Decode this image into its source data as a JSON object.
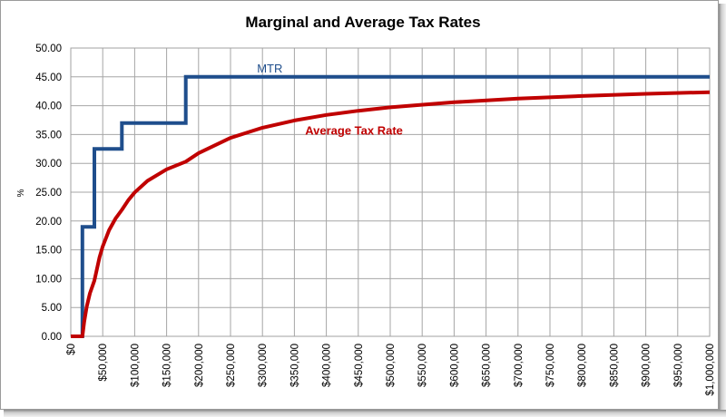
{
  "chart_data": {
    "type": "line",
    "title": "Marginal and Average Tax Rates",
    "xlabel": "",
    "ylabel": "%",
    "xlim": [
      0,
      1000000
    ],
    "ylim": [
      0,
      50
    ],
    "grid": true,
    "legend": "none (inline annotations)",
    "y_ticks": [
      "0.00",
      "5.00",
      "10.00",
      "15.00",
      "20.00",
      "25.00",
      "30.00",
      "35.00",
      "40.00",
      "45.00",
      "50.00"
    ],
    "y_tick_values": [
      0,
      5,
      10,
      15,
      20,
      25,
      30,
      35,
      40,
      45,
      50
    ],
    "x_ticks": [
      "$0",
      "$50,000",
      "$100,000",
      "$150,000",
      "$200,000",
      "$250,000",
      "$300,000",
      "$350,000",
      "$400,000",
      "$450,000",
      "$500,000",
      "$550,000",
      "$600,000",
      "$650,000",
      "$700,000",
      "$750,000",
      "$800,000",
      "$850,000",
      "$900,000",
      "$950,000",
      "$1,000,000"
    ],
    "x_tick_values": [
      0,
      50000,
      100000,
      150000,
      200000,
      250000,
      300000,
      350000,
      400000,
      450000,
      500000,
      550000,
      600000,
      650000,
      700000,
      750000,
      800000,
      850000,
      900000,
      950000,
      1000000
    ],
    "series": [
      {
        "name": "MTR",
        "color": "#1f4e8c",
        "step": true,
        "x": [
          0,
          18200,
          18200,
          37000,
          37000,
          80000,
          80000,
          180000,
          180000,
          1000000
        ],
        "y": [
          0,
          0,
          19,
          19,
          32.5,
          32.5,
          37,
          37,
          45,
          45
        ]
      },
      {
        "name": "Average Tax Rate",
        "color": "#c00000",
        "step": false,
        "x": [
          0,
          18200,
          21000,
          25000,
          30000,
          37000,
          45000,
          50000,
          60000,
          70000,
          80000,
          90000,
          100000,
          120000,
          150000,
          180000,
          200000,
          250000,
          300000,
          350000,
          400000,
          450000,
          500000,
          600000,
          700000,
          800000,
          900000,
          1000000
        ],
        "y": [
          0,
          0,
          2.53,
          5.17,
          7.47,
          9.65,
          13.72,
          15.59,
          18.41,
          20.42,
          21.93,
          23.61,
          24.95,
          26.96,
          28.96,
          30.3,
          31.77,
          34.42,
          36.18,
          37.44,
          38.39,
          39.12,
          39.71,
          40.59,
          41.22,
          41.69,
          42.06,
          42.35
        ]
      }
    ],
    "annotations": [
      {
        "text": "MTR",
        "series": "MTR",
        "x": 300000,
        "y": 45
      },
      {
        "text": "Average Tax Rate",
        "series": "Average Tax Rate",
        "x": 435000,
        "y": 35
      }
    ]
  }
}
